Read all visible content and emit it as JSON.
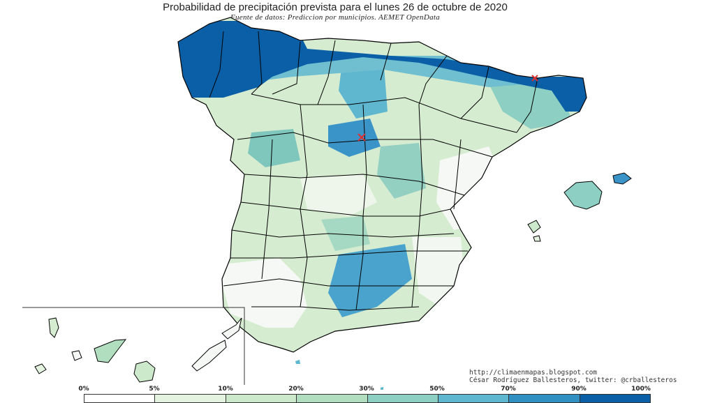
{
  "header": {
    "title": "Probabilidad de precipitación prevista para el lunes 26 de octubre de 2020",
    "subtitle": "Fuente de datos: Prediccion por municipios. AEMET OpenData"
  },
  "credits": {
    "url": "http://climaenmapas.blogspot.com",
    "author": "César Rodríguez Ballesteros, twitter: @crballesteros"
  },
  "legend": {
    "ticks": [
      "0%",
      "5%",
      "10%",
      "20%",
      "30%",
      "50%",
      "70%",
      "90%",
      "100%"
    ],
    "colors": [
      "#ffffff",
      "#e4f3df",
      "#cde9cb",
      "#b2dec0",
      "#8dcfc3",
      "#5eb6cf",
      "#3190c2",
      "#0b5fa6"
    ]
  },
  "map_colors": {
    "land_base": "#d6ecd0",
    "low": "#f5f8f4",
    "medium": "#8fcdc0",
    "high": "#3b94c8",
    "very_high": "#0b5fa6",
    "border": "#000000"
  }
}
